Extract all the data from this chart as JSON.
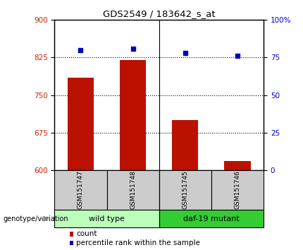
{
  "title": "GDS2549 / 183642_s_at",
  "samples": [
    "GSM151747",
    "GSM151748",
    "GSM151745",
    "GSM151746"
  ],
  "counts": [
    785,
    820,
    700,
    618
  ],
  "percentile_ranks": [
    80,
    81,
    78,
    76
  ],
  "groups": [
    {
      "name": "wild type",
      "samples": [
        0,
        1
      ],
      "color": "#bbffbb"
    },
    {
      "name": "daf-19 mutant",
      "samples": [
        2,
        3
      ],
      "color": "#33cc33"
    }
  ],
  "bar_color": "#bb1100",
  "dot_color": "#0000bb",
  "ylim_left": [
    600,
    900
  ],
  "ylim_right": [
    0,
    100
  ],
  "yticks_left": [
    600,
    675,
    750,
    825,
    900
  ],
  "yticks_right": [
    0,
    25,
    50,
    75,
    100
  ],
  "ytick_labels_right": [
    "0",
    "25",
    "50",
    "75",
    "100%"
  ],
  "hlines": [
    675,
    750,
    825
  ],
  "left_tick_color": "#cc2200",
  "right_tick_color": "#0000cc",
  "legend_count_label": "count",
  "legend_pct_label": "percentile rank within the sample",
  "genotype_label": "genotype/variation",
  "bar_width": 0.5,
  "sample_label_bg": "#cccccc",
  "group_label_light": "#bbffbb",
  "group_label_dark": "#33cc33"
}
